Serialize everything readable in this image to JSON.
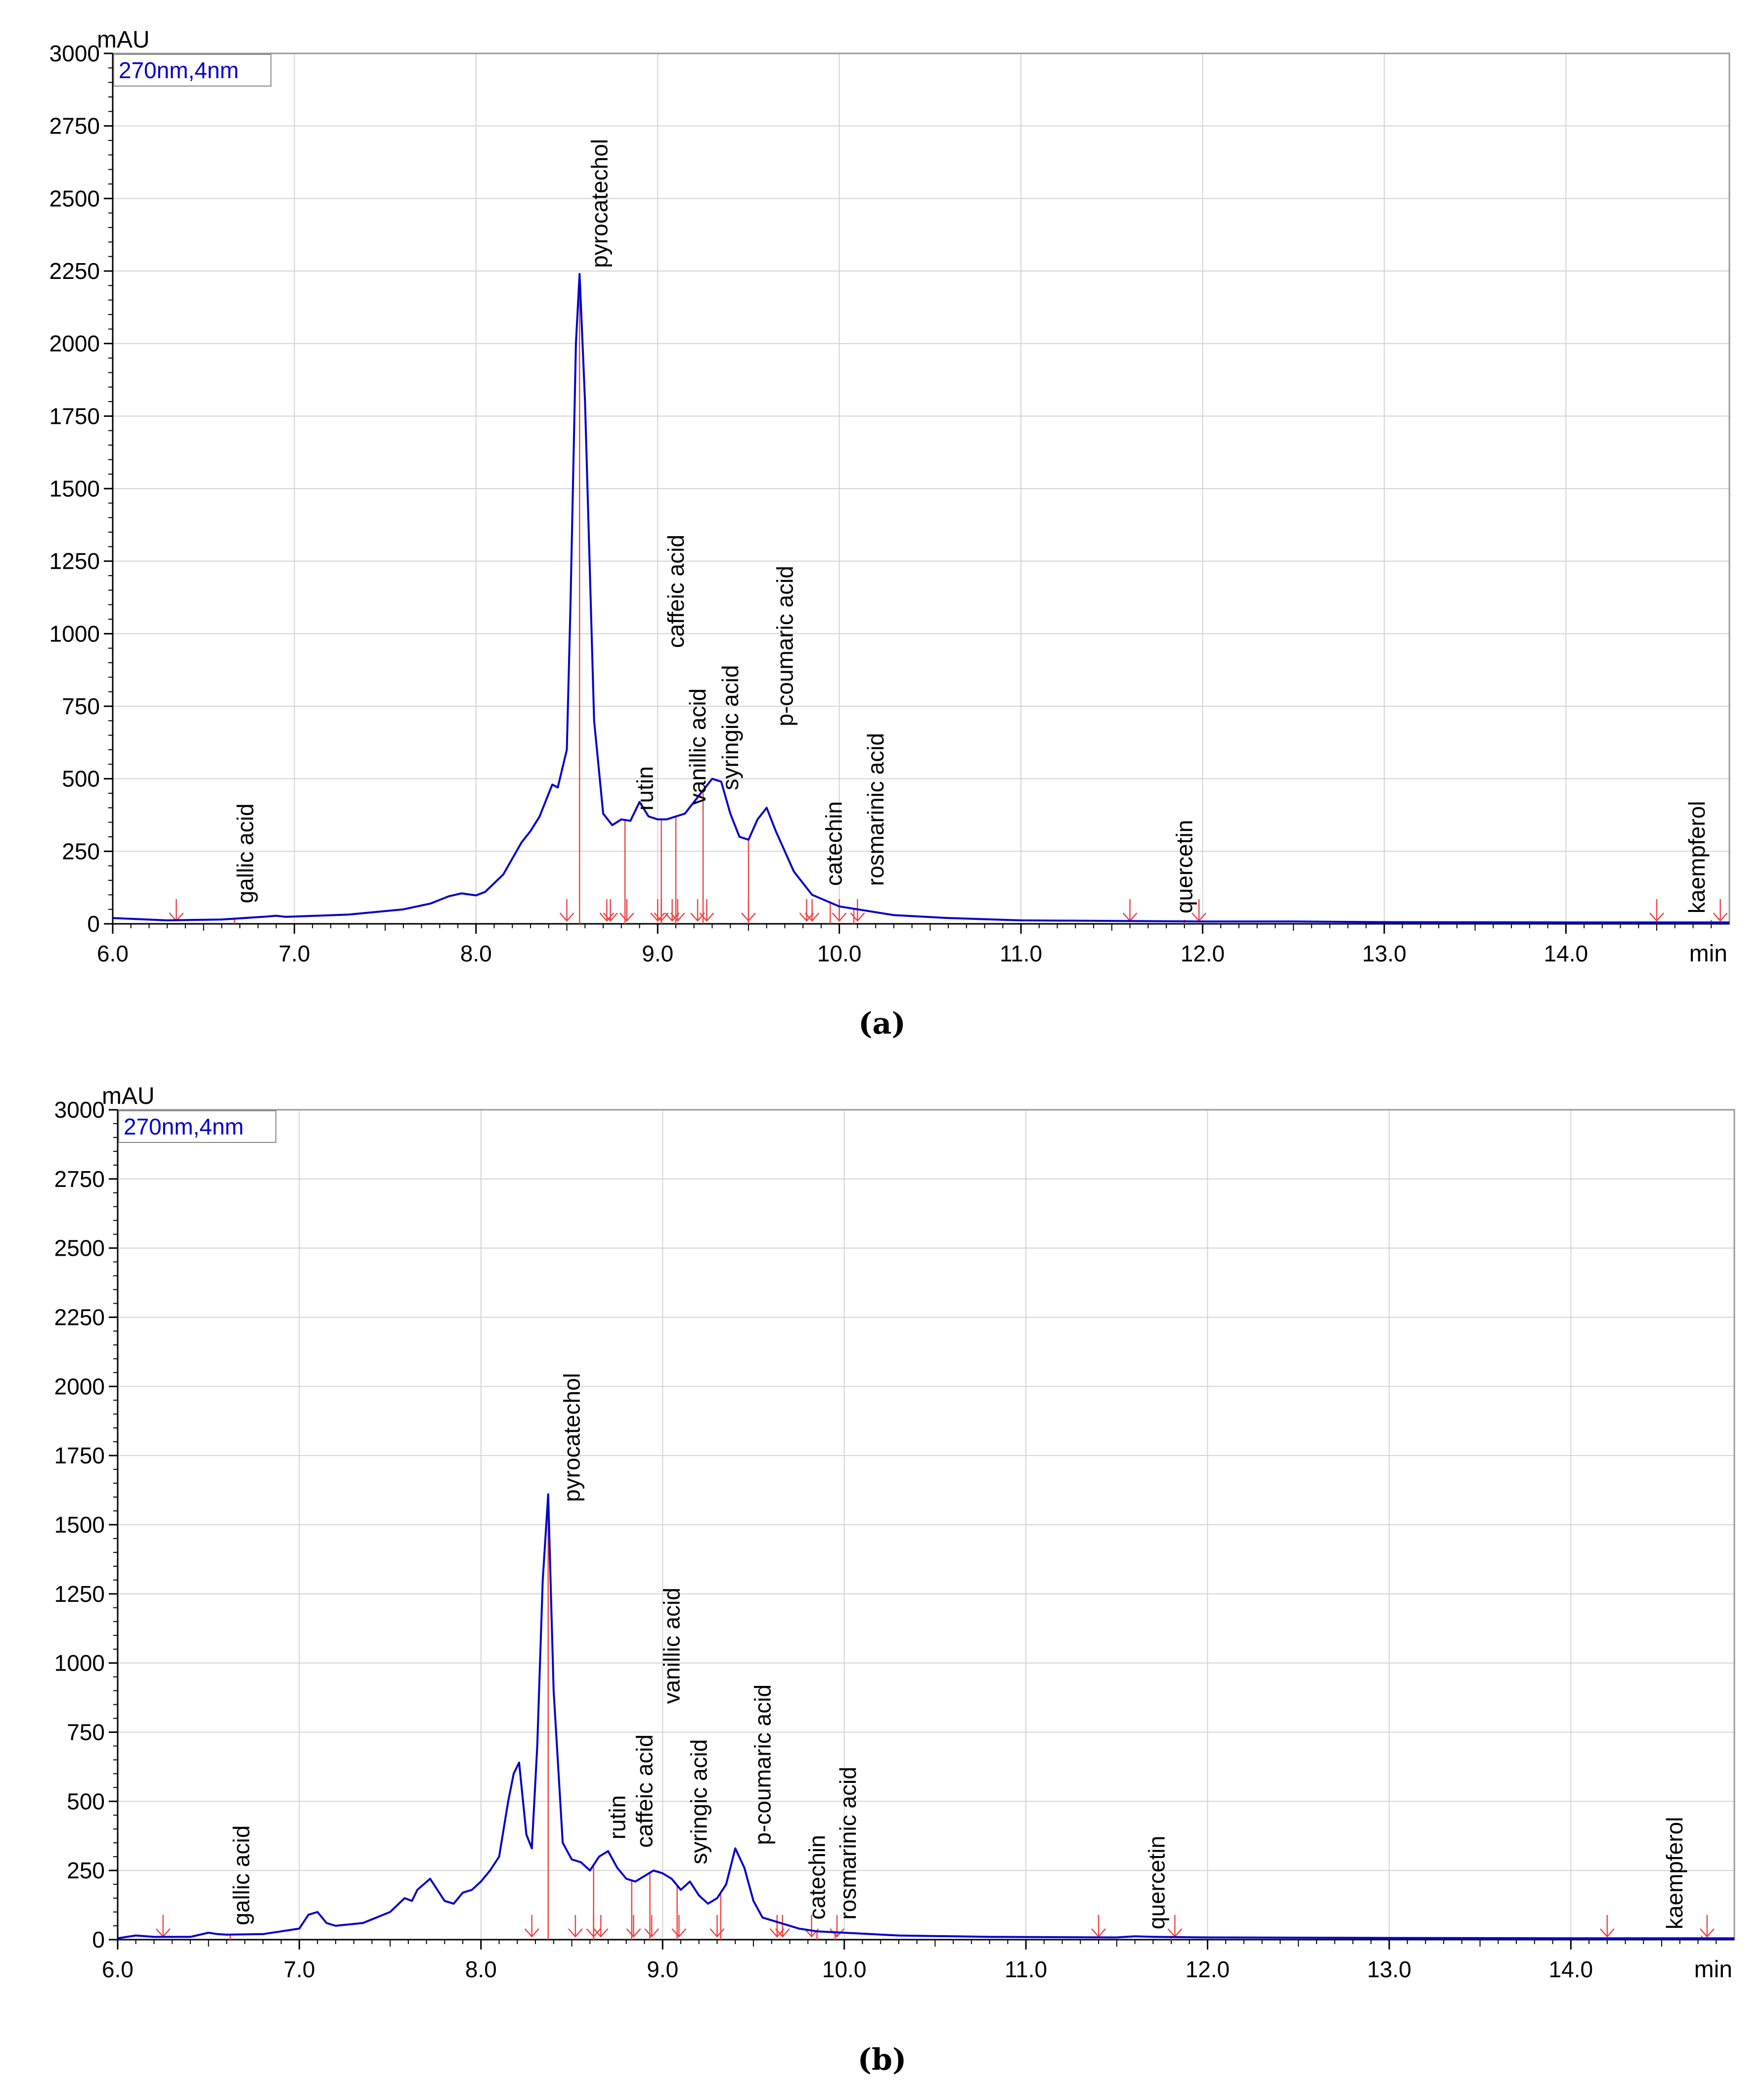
{
  "colors": {
    "trace": "#0000cc",
    "marker": "#ee4444",
    "grid": "#d4d4d4",
    "axis": "#000000"
  },
  "chart_data": [
    {
      "type": "line",
      "caption": "(a)",
      "legend": "270nm,4nm",
      "ylabel": "mAU",
      "xlabel": "min",
      "xlim": [
        6.0,
        14.9
      ],
      "ylim": [
        0,
        3000
      ],
      "xticks": [
        "6.0",
        "7.0",
        "8.0",
        "9.0",
        "10.0",
        "11.0",
        "12.0",
        "13.0",
        "14.0"
      ],
      "yticks": [
        "0",
        "250",
        "500",
        "750",
        "1000",
        "1250",
        "1500",
        "1750",
        "2000",
        "2250",
        "2500",
        "2750",
        "3000"
      ],
      "series": [
        {
          "name": "270nm,4nm",
          "x": [
            6.0,
            6.3,
            6.6,
            6.85,
            6.9,
            6.95,
            7.0,
            7.3,
            7.6,
            7.75,
            7.85,
            7.92,
            8.0,
            8.05,
            8.15,
            8.25,
            8.3,
            8.35,
            8.42,
            8.45,
            8.5,
            8.52,
            8.55,
            8.57,
            8.6,
            8.65,
            8.7,
            8.75,
            8.8,
            8.85,
            8.9,
            8.95,
            9.0,
            9.05,
            9.1,
            9.15,
            9.2,
            9.25,
            9.3,
            9.35,
            9.4,
            9.45,
            9.5,
            9.55,
            9.6,
            9.65,
            9.75,
            9.85,
            10.0,
            10.3,
            10.6,
            11.0,
            11.5,
            12.0,
            12.5,
            13.0,
            14.0,
            14.9
          ],
          "y": [
            20,
            12,
            15,
            25,
            28,
            24,
            25,
            32,
            50,
            70,
            95,
            105,
            98,
            110,
            170,
            280,
            320,
            370,
            480,
            470,
            600,
            1100,
            2000,
            2240,
            1800,
            700,
            380,
            340,
            360,
            355,
            420,
            370,
            360,
            360,
            370,
            380,
            420,
            460,
            500,
            490,
            380,
            300,
            290,
            360,
            400,
            320,
            180,
            100,
            60,
            30,
            20,
            12,
            10,
            8,
            8,
            6,
            5,
            5
          ]
        }
      ],
      "peaks": [
        {
          "name": "gallic acid",
          "rt": 6.67,
          "label_rt": 6.73,
          "label_y": 40
        },
        {
          "name": "pyrocatechol",
          "rt": 8.57,
          "label_rt": 8.68,
          "label_y": 2230
        },
        {
          "name": "rutin",
          "rt": 8.82,
          "label_rt": 8.93,
          "label_y": 360
        },
        {
          "name": "caffeic acid",
          "rt": 9.02,
          "label_rt": 9.1,
          "label_y": 920
        },
        {
          "name": "vanillic acid",
          "rt": 9.1,
          "label_rt": 9.22,
          "label_y": 380
        },
        {
          "name": "syringic acid",
          "rt": 9.25,
          "label_rt": 9.4,
          "label_y": 430
        },
        {
          "name": "p-coumaric acid",
          "rt": 9.5,
          "label_rt": 9.7,
          "label_y": 650
        },
        {
          "name": "catechin",
          "rt": 9.95,
          "label_rt": 9.97,
          "label_y": 100
        },
        {
          "name": "rosmarinic acid",
          "rt": 10.08,
          "label_rt": 10.2,
          "label_y": 100
        },
        {
          "name": "quercetin",
          "rt": 11.9,
          "label_rt": 11.9,
          "label_y": 5
        },
        {
          "name": "kaempferol",
          "rt": 14.8,
          "label_rt": 14.72,
          "label_y": 5
        }
      ],
      "integration_ticks": [
        6.35,
        8.5,
        8.72,
        8.74,
        8.83,
        9.0,
        9.02,
        9.08,
        9.11,
        9.22,
        9.27,
        9.5,
        9.82,
        9.85,
        10.0,
        10.1,
        11.6,
        11.98,
        14.5,
        14.85
      ]
    },
    {
      "type": "line",
      "caption": "(b)",
      "legend": "270nm,4nm",
      "ylabel": "mAU",
      "xlabel": "min",
      "xlim": [
        6.0,
        14.9
      ],
      "ylim": [
        0,
        3000
      ],
      "xticks": [
        "6.0",
        "7.0",
        "8.0",
        "9.0",
        "10.0",
        "11.0",
        "12.0",
        "13.0",
        "14.0"
      ],
      "yticks": [
        "0",
        "250",
        "500",
        "750",
        "1000",
        "1250",
        "1500",
        "1750",
        "2000",
        "2250",
        "2500",
        "2750",
        "3000"
      ],
      "series": [
        {
          "name": "270nm,4nm",
          "x": [
            6.0,
            6.1,
            6.2,
            6.4,
            6.5,
            6.55,
            6.6,
            6.8,
            7.0,
            7.05,
            7.1,
            7.15,
            7.2,
            7.35,
            7.5,
            7.58,
            7.62,
            7.65,
            7.72,
            7.8,
            7.85,
            7.9,
            7.95,
            8.0,
            8.05,
            8.1,
            8.15,
            8.18,
            8.21,
            8.25,
            8.28,
            8.31,
            8.34,
            8.37,
            8.4,
            8.45,
            8.5,
            8.55,
            8.6,
            8.65,
            8.7,
            8.75,
            8.8,
            8.85,
            8.9,
            8.95,
            9.0,
            9.05,
            9.1,
            9.15,
            9.2,
            9.25,
            9.3,
            9.35,
            9.4,
            9.45,
            9.5,
            9.55,
            9.65,
            9.75,
            9.85,
            10.0,
            10.3,
            10.8,
            11.5,
            11.6,
            11.7,
            12.0,
            13.0,
            14.0,
            14.9
          ],
          "y": [
            5,
            15,
            10,
            10,
            25,
            20,
            18,
            20,
            40,
            90,
            100,
            60,
            50,
            60,
            100,
            150,
            140,
            180,
            220,
            140,
            130,
            170,
            180,
            210,
            250,
            300,
            500,
            600,
            640,
            380,
            330,
            700,
            1300,
            1610,
            900,
            350,
            290,
            280,
            250,
            300,
            320,
            260,
            220,
            210,
            230,
            250,
            240,
            220,
            180,
            210,
            160,
            130,
            150,
            200,
            330,
            260,
            140,
            80,
            60,
            40,
            30,
            25,
            15,
            10,
            8,
            12,
            10,
            8,
            6,
            5,
            5
          ]
        }
      ],
      "peaks": [
        {
          "name": "gallic acid",
          "rt": 6.62,
          "label_rt": 6.68,
          "label_y": 20
        },
        {
          "name": "pyrocatechol",
          "rt": 8.37,
          "label_rt": 8.5,
          "label_y": 1550
        },
        {
          "name": "rutin",
          "rt": 8.62,
          "label_rt": 8.75,
          "label_y": 330
        },
        {
          "name": "caffeic acid",
          "rt": 8.83,
          "label_rt": 8.9,
          "label_y": 300
        },
        {
          "name": "vanillic acid",
          "rt": 8.93,
          "label_rt": 9.05,
          "label_y": 820
        },
        {
          "name": "syringic acid",
          "rt": 9.08,
          "label_rt": 9.2,
          "label_y": 240
        },
        {
          "name": "p-coumaric acid",
          "rt": 9.32,
          "label_rt": 9.55,
          "label_y": 310
        },
        {
          "name": "catechin",
          "rt": 9.85,
          "label_rt": 9.85,
          "label_y": 40
        },
        {
          "name": "rosmarinic acid",
          "rt": 9.95,
          "label_rt": 10.02,
          "label_y": 40
        },
        {
          "name": "quercetin",
          "rt": 11.8,
          "label_rt": 11.72,
          "label_y": 5
        },
        {
          "name": "kaempferol",
          "rt": 14.72,
          "label_rt": 14.57,
          "label_y": 5
        }
      ],
      "integration_ticks": [
        6.25,
        8.28,
        8.52,
        8.62,
        8.66,
        8.84,
        8.94,
        9.09,
        9.3,
        9.63,
        9.66,
        9.82,
        9.96,
        11.4,
        11.82,
        14.2,
        14.75
      ]
    }
  ]
}
